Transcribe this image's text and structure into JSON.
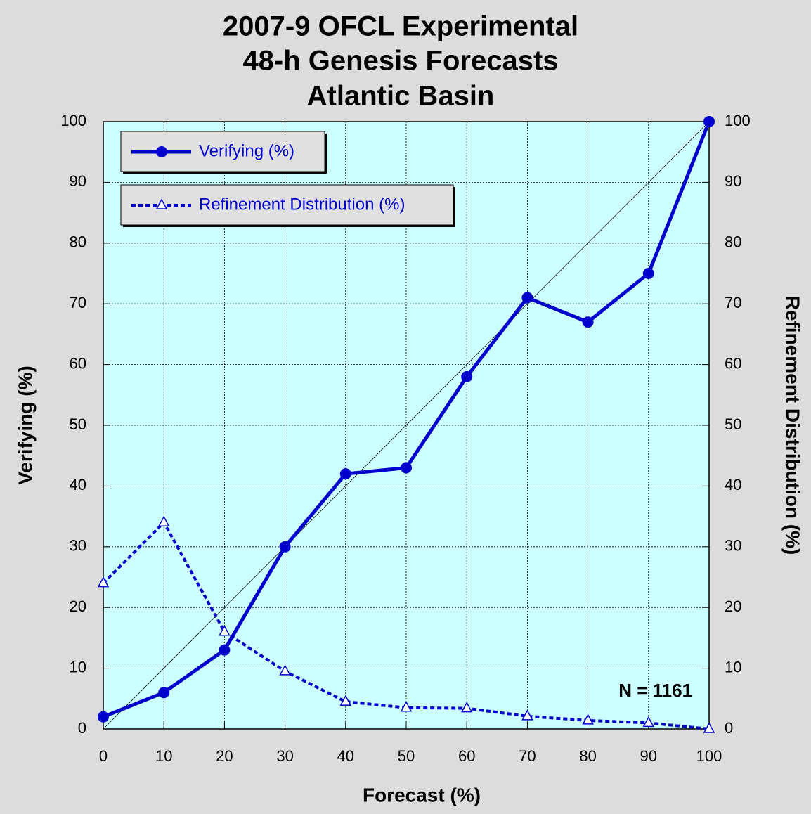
{
  "chart_data": {
    "type": "line",
    "title": [
      "2007-9 OFCL Experimental",
      "48-h Genesis Forecasts",
      "Atlantic Basin"
    ],
    "xlabel": "Forecast (%)",
    "ylabel": "Verifying (%)",
    "y2label": "Refinement Distribution (%)",
    "annotation": "N = 1161",
    "x": [
      0,
      10,
      20,
      30,
      40,
      50,
      60,
      70,
      80,
      90,
      100
    ],
    "series": [
      {
        "name": "Verifying (%)",
        "color": "#0000cc",
        "marker": "circle",
        "dash": false,
        "values": [
          2,
          6,
          13,
          30,
          42,
          43,
          58,
          71,
          67,
          75,
          100
        ]
      },
      {
        "name": "Refinement Distribution (%)",
        "color": "#0000cc",
        "marker": "triangle",
        "dash": true,
        "axis": "y2",
        "values": [
          24,
          34,
          16,
          9.5,
          4.5,
          3.5,
          3.4,
          2.1,
          1.4,
          1.0,
          0
        ]
      }
    ],
    "xlim": [
      0,
      100
    ],
    "xticks": [
      0,
      10,
      20,
      30,
      40,
      50,
      60,
      70,
      80,
      90,
      100
    ],
    "ylim": [
      0,
      100
    ],
    "yticks": [
      0,
      10,
      20,
      30,
      40,
      50,
      60,
      70,
      80,
      90,
      100
    ],
    "y2lim": [
      0,
      100
    ],
    "y2ticks": [
      0,
      10,
      20,
      30,
      40,
      50,
      60,
      70,
      80,
      90,
      100
    ],
    "grid": true
  }
}
